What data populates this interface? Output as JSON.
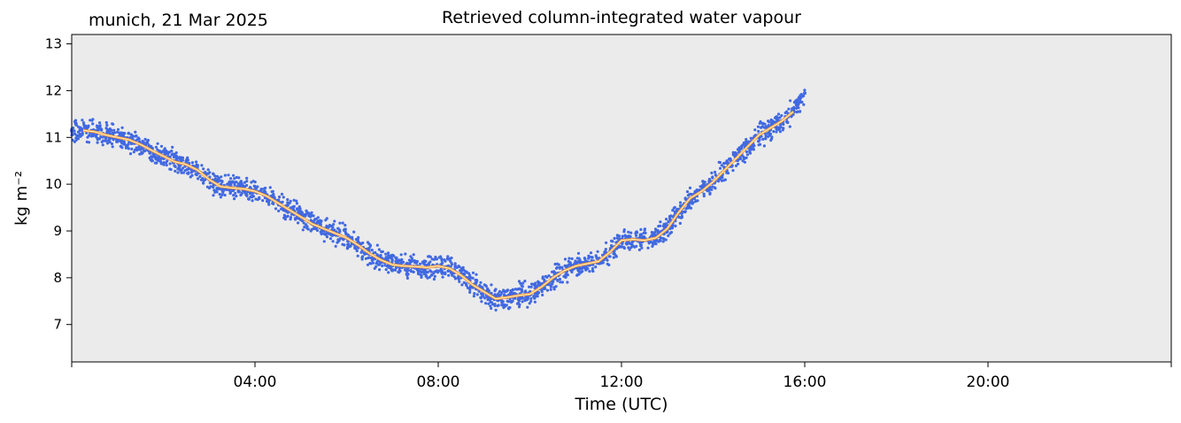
{
  "header": {
    "site_date": "munich, 21 Mar 2025"
  },
  "colors": {
    "axes_background": "#ebebeb",
    "scatter": "#4169e1",
    "smoothed_line": "#ff9933",
    "smoothed_center": "#fffad0"
  },
  "chart_data": {
    "type": "scatter",
    "title": "Retrieved column-integrated water vapour",
    "xlabel": "Time (UTC)",
    "ylabel": "kg m⁻²",
    "x_unit": "hours UTC",
    "xlim": [
      0,
      24
    ],
    "ylim": [
      6.2,
      13.2
    ],
    "x_ticks": [
      {
        "value": 0,
        "label": ""
      },
      {
        "value": 4,
        "label": "04:00"
      },
      {
        "value": 8,
        "label": "08:00"
      },
      {
        "value": 12,
        "label": "12:00"
      },
      {
        "value": 16,
        "label": "16:00"
      },
      {
        "value": 20,
        "label": "20:00"
      },
      {
        "value": 24,
        "label": ""
      }
    ],
    "y_ticks": [
      7,
      8,
      9,
      10,
      11,
      12,
      13
    ],
    "grid": false,
    "legend": "none",
    "series": [
      {
        "kind": "scatter",
        "description": "retrieved values",
        "x": [
          0.0,
          0.25,
          0.5,
          0.75,
          1.0,
          1.25,
          1.5,
          1.75,
          2.0,
          2.25,
          2.5,
          2.75,
          3.0,
          3.25,
          3.5,
          3.75,
          4.0,
          4.25,
          4.5,
          4.75,
          5.0,
          5.25,
          5.5,
          5.75,
          6.0,
          6.25,
          6.5,
          6.75,
          7.0,
          7.25,
          7.5,
          7.75,
          8.0,
          8.25,
          8.5,
          8.75,
          9.0,
          9.25,
          9.5,
          9.75,
          10.0,
          10.25,
          10.5,
          10.75,
          11.0,
          11.25,
          11.5,
          11.75,
          12.0,
          12.25,
          12.5,
          12.75,
          13.0,
          13.25,
          13.5,
          13.75,
          14.0,
          14.25,
          14.5,
          14.75,
          15.0,
          15.25,
          15.5,
          15.75,
          16.0
        ],
        "y": [
          11.15,
          11.15,
          11.12,
          11.05,
          11.0,
          10.95,
          10.85,
          10.72,
          10.6,
          10.48,
          10.42,
          10.3,
          10.1,
          9.95,
          9.92,
          9.9,
          9.85,
          9.75,
          9.6,
          9.45,
          9.3,
          9.15,
          9.05,
          8.95,
          8.85,
          8.7,
          8.52,
          8.38,
          8.28,
          8.25,
          8.24,
          8.22,
          8.25,
          8.2,
          8.05,
          7.85,
          7.7,
          7.55,
          7.58,
          7.62,
          7.65,
          7.8,
          8.0,
          8.15,
          8.25,
          8.3,
          8.35,
          8.55,
          8.8,
          8.82,
          8.8,
          8.85,
          9.05,
          9.4,
          9.7,
          9.85,
          10.05,
          10.3,
          10.55,
          10.8,
          11.05,
          11.2,
          11.35,
          11.6,
          11.95
        ]
      },
      {
        "kind": "line",
        "description": "smoothed",
        "x": [
          0.25,
          0.5,
          0.75,
          1.0,
          1.25,
          1.5,
          1.75,
          2.0,
          2.25,
          2.5,
          2.75,
          3.0,
          3.25,
          3.5,
          3.75,
          4.0,
          4.25,
          4.5,
          4.75,
          5.0,
          5.25,
          5.5,
          5.75,
          6.0,
          6.25,
          6.5,
          6.75,
          7.0,
          7.25,
          7.5,
          7.75,
          8.0,
          8.25,
          8.5,
          8.75,
          9.0,
          9.25,
          9.5,
          9.75,
          10.0,
          10.25,
          10.5,
          10.75,
          11.0,
          11.25,
          11.5,
          11.75,
          12.0,
          12.25,
          12.5,
          12.75,
          13.0,
          13.25,
          13.5,
          13.75,
          14.0,
          14.25,
          14.5,
          14.75,
          15.0,
          15.25,
          15.5,
          15.75
        ],
        "y": [
          11.15,
          11.12,
          11.05,
          11.0,
          10.95,
          10.85,
          10.72,
          10.6,
          10.48,
          10.42,
          10.3,
          10.1,
          9.95,
          9.92,
          9.9,
          9.85,
          9.75,
          9.6,
          9.45,
          9.3,
          9.15,
          9.05,
          8.95,
          8.85,
          8.7,
          8.52,
          8.38,
          8.28,
          8.25,
          8.24,
          8.22,
          8.25,
          8.2,
          8.05,
          7.85,
          7.7,
          7.55,
          7.58,
          7.62,
          7.65,
          7.8,
          8.0,
          8.15,
          8.25,
          8.3,
          8.35,
          8.55,
          8.8,
          8.82,
          8.8,
          8.85,
          9.05,
          9.4,
          9.7,
          9.85,
          10.05,
          10.3,
          10.55,
          10.8,
          11.05,
          11.2,
          11.35,
          11.55
        ]
      }
    ]
  }
}
